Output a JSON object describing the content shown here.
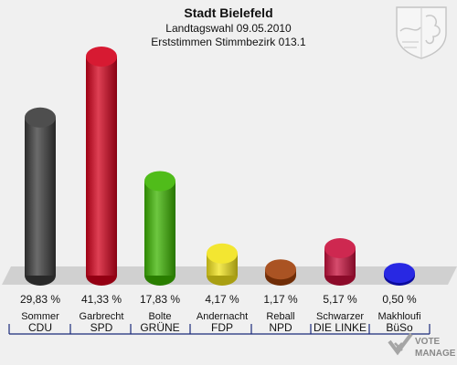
{
  "header": {
    "title": "Stadt Bielefeld",
    "subtitle": "Landtagswahl 09.05.2010",
    "subtitle2": "Erststimmen Stimmbezirk 013.1"
  },
  "brand": {
    "line1": "VOTE",
    "line2": "MANAGER"
  },
  "chart_data": {
    "type": "bar",
    "categories": [
      "Sommer",
      "Garbrecht",
      "Bolte",
      "Andernacht",
      "Reball",
      "Schwarzer",
      "Makhloufi"
    ],
    "parties": [
      "CDU",
      "SPD",
      "GRÜNE",
      "FDP",
      "NPD",
      "DIE LINKE",
      "BüSo"
    ],
    "values": [
      29.83,
      41.33,
      17.83,
      4.17,
      1.17,
      5.17,
      0.5
    ],
    "value_labels": [
      "29,83 %",
      "41,33 %",
      "17,83 %",
      "4,17 %",
      "1,17 %",
      "5,17 %",
      "0,50 %"
    ],
    "colors": [
      "#3a3a3a",
      "#d3001b",
      "#3cb400",
      "#f2e31a",
      "#a0400a",
      "#c8103c",
      "#1010e0"
    ],
    "ylim": [
      0,
      41.33
    ],
    "grid": false
  }
}
